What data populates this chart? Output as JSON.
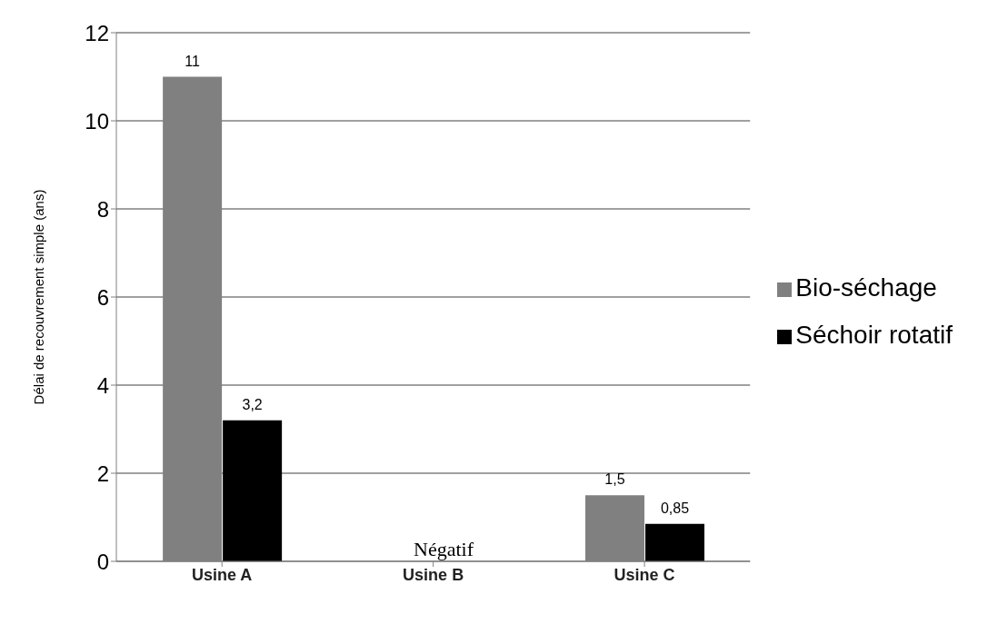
{
  "chart_data": {
    "type": "bar",
    "ylabel": "Délai de recouvrement simple  (ans)",
    "categories": [
      "Usine A",
      "Usine B",
      "Usine C"
    ],
    "series": [
      {
        "name": "Bio-séchage",
        "color": "#808080",
        "values": [
          11,
          null,
          1.5
        ],
        "value_labels": [
          "11",
          null,
          "1,5"
        ]
      },
      {
        "name": "Séchoir rotatif",
        "color": "#000000",
        "values": [
          3.2,
          null,
          0.85
        ],
        "value_labels": [
          "3,2",
          null,
          "0,85"
        ]
      }
    ],
    "ylim": [
      0,
      12
    ],
    "yticks": [
      0,
      2,
      4,
      6,
      8,
      10,
      12
    ],
    "grid": "y",
    "legend": "right",
    "annotations": [
      "Négatif"
    ]
  }
}
